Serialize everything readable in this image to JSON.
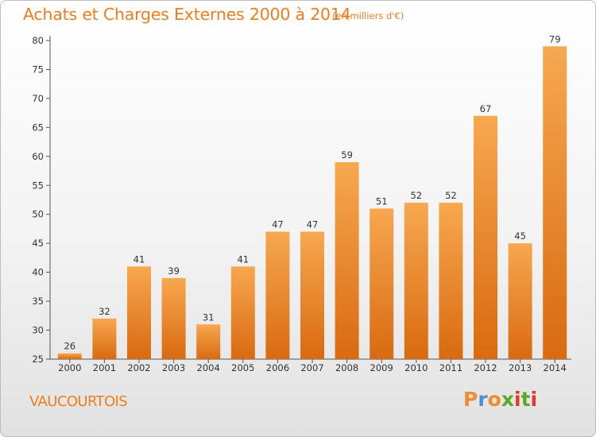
{
  "header": {
    "title": "Achats et Charges Externes 2000 à 2014",
    "subtitle": "(en milliers d'€)"
  },
  "footer": {
    "town": "VAUCOURTOIS",
    "logo": [
      "P",
      "r",
      "o",
      "x",
      "i",
      "t",
      "i"
    ]
  },
  "colors": {
    "accent": "#ef7d1e",
    "bar_top": "#f7a850",
    "bar_bottom": "#d96a10",
    "logo": [
      "#f28a2e",
      "#4a90d9",
      "#f28a2e",
      "#5aaa2a",
      "#e8352c",
      "#5aaa2a",
      "#e8352c"
    ]
  },
  "chart_data": {
    "type": "bar",
    "title": "Achats et Charges Externes 2000 à 2014",
    "categories": [
      "2000",
      "2001",
      "2002",
      "2003",
      "2004",
      "2005",
      "2006",
      "2007",
      "2008",
      "2009",
      "2010",
      "2011",
      "2012",
      "2013",
      "2014"
    ],
    "values": [
      26,
      32,
      41,
      39,
      31,
      41,
      47,
      47,
      59,
      51,
      52,
      52,
      67,
      45,
      79
    ],
    "ylim": [
      25,
      80
    ],
    "yticks": [
      25,
      30,
      35,
      40,
      45,
      50,
      55,
      60,
      65,
      70,
      75,
      80
    ],
    "grid": false,
    "legend": "none"
  }
}
